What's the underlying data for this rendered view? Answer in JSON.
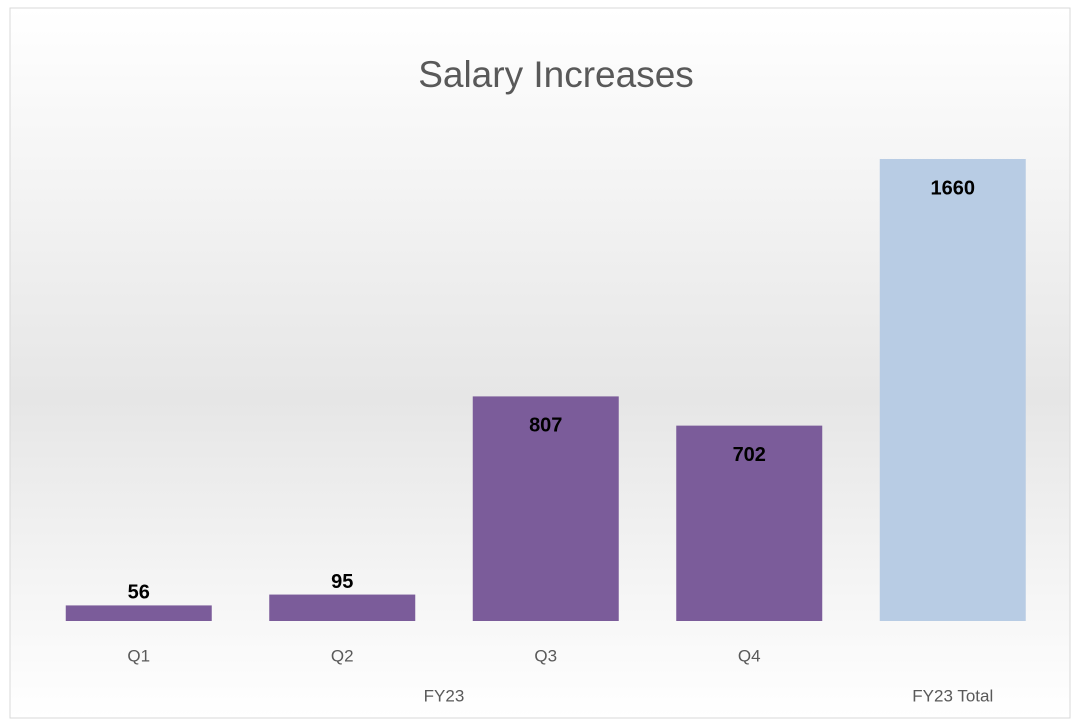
{
  "chart_data": {
    "type": "bar",
    "title": "Salary Increases",
    "categories": [
      "Q1",
      "Q2",
      "Q3",
      "Q4",
      null
    ],
    "values": [
      56,
      95,
      807,
      702,
      1660
    ],
    "colors": [
      "#7b5c9a",
      "#7b5c9a",
      "#7b5c9a",
      "#7b5c9a",
      "#b8cce4"
    ],
    "groups": [
      {
        "name": "FY23",
        "size": 4
      },
      {
        "name": "FY23 Total",
        "size": 1
      }
    ]
  }
}
